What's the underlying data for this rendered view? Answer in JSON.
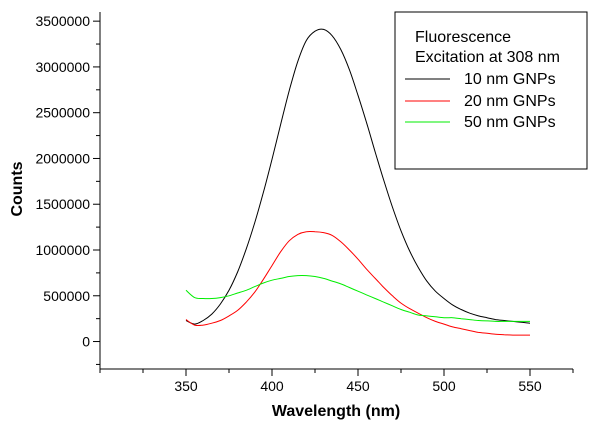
{
  "chart_data": {
    "type": "line",
    "title": "",
    "xlabel": "Wavelength (nm)",
    "ylabel": "Counts",
    "xlim": [
      300,
      575
    ],
    "ylim": [
      -300000,
      3600000
    ],
    "xticks": [
      350,
      400,
      450,
      500,
      550
    ],
    "yticks": [
      0,
      500000,
      1000000,
      1500000,
      2000000,
      2500000,
      3000000,
      3500000
    ],
    "legend": {
      "placement": "top-right",
      "header": [
        "Fluorescence",
        "Excitation at 308 nm"
      ]
    },
    "series": [
      {
        "name": "10 nm GNPs",
        "color": "#000000",
        "x": [
          350,
          355,
          360,
          365,
          370,
          375,
          380,
          385,
          390,
          395,
          400,
          405,
          410,
          415,
          420,
          425,
          430,
          435,
          440,
          445,
          450,
          455,
          460,
          465,
          470,
          475,
          480,
          485,
          490,
          495,
          500,
          505,
          510,
          515,
          520,
          525,
          530,
          535,
          540,
          545,
          550
        ],
        "y": [
          230000,
          190000,
          230000,
          300000,
          410000,
          560000,
          760000,
          1010000,
          1300000,
          1630000,
          1990000,
          2370000,
          2740000,
          3060000,
          3290000,
          3390000,
          3410000,
          3340000,
          3190000,
          2970000,
          2690000,
          2390000,
          2070000,
          1760000,
          1470000,
          1210000,
          990000,
          810000,
          660000,
          550000,
          470000,
          400000,
          350000,
          310000,
          280000,
          260000,
          240000,
          230000,
          220000,
          210000,
          200000
        ]
      },
      {
        "name": "20 nm GNPs",
        "color": "#ff0000",
        "x": [
          350,
          355,
          360,
          365,
          370,
          375,
          380,
          385,
          390,
          395,
          400,
          405,
          410,
          415,
          420,
          425,
          430,
          435,
          440,
          445,
          450,
          455,
          460,
          465,
          470,
          475,
          480,
          485,
          490,
          495,
          500,
          505,
          510,
          515,
          520,
          525,
          530,
          535,
          540,
          545,
          550
        ],
        "y": [
          240000,
          180000,
          180000,
          200000,
          230000,
          280000,
          340000,
          430000,
          540000,
          680000,
          830000,
          980000,
          1100000,
          1170000,
          1200000,
          1200000,
          1190000,
          1160000,
          1090000,
          1000000,
          900000,
          790000,
          690000,
          590000,
          500000,
          420000,
          360000,
          310000,
          260000,
          220000,
          190000,
          160000,
          140000,
          120000,
          100000,
          90000,
          80000,
          75000,
          70000,
          70000,
          70000
        ]
      },
      {
        "name": "50 nm GNPs",
        "color": "#00ee00",
        "x": [
          350,
          355,
          360,
          365,
          370,
          375,
          380,
          385,
          390,
          395,
          400,
          405,
          410,
          415,
          420,
          425,
          430,
          435,
          440,
          445,
          450,
          455,
          460,
          465,
          470,
          475,
          480,
          485,
          490,
          495,
          500,
          505,
          510,
          515,
          520,
          525,
          530,
          535,
          540,
          545,
          550
        ],
        "y": [
          560000,
          480000,
          470000,
          470000,
          480000,
          500000,
          530000,
          560000,
          600000,
          640000,
          670000,
          690000,
          710000,
          720000,
          720000,
          710000,
          690000,
          660000,
          630000,
          590000,
          550000,
          510000,
          470000,
          430000,
          390000,
          350000,
          320000,
          290000,
          280000,
          270000,
          260000,
          260000,
          250000,
          240000,
          230000,
          225000,
          220000,
          220000,
          220000,
          220000,
          220000
        ]
      }
    ]
  }
}
